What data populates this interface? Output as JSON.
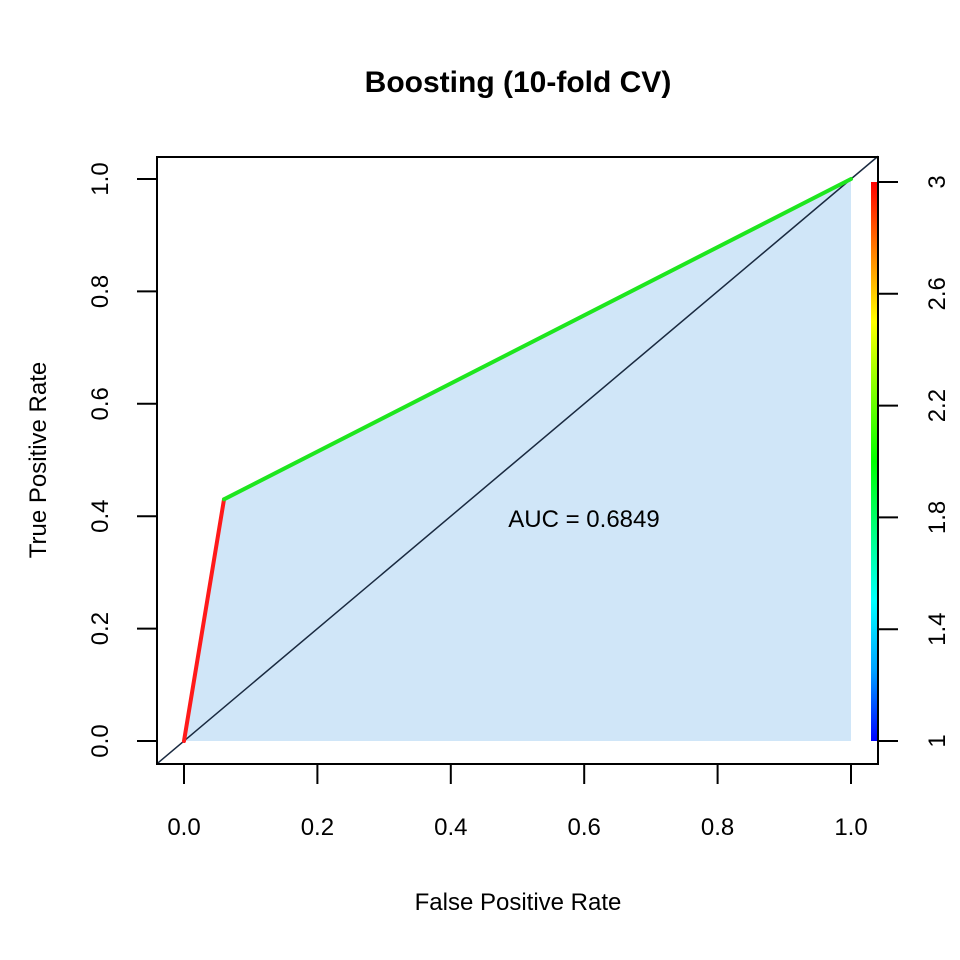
{
  "chart_data": {
    "type": "line",
    "title": "Boosting (10-fold CV)",
    "xlabel": "False Positive Rate",
    "ylabel": "True Positive Rate",
    "xlim": [
      0,
      1
    ],
    "ylim": [
      0,
      1
    ],
    "x_ticks": [
      "0.0",
      "0.2",
      "0.4",
      "0.6",
      "0.8",
      "1.0"
    ],
    "y_ticks": [
      "0.0",
      "0.2",
      "0.4",
      "0.6",
      "0.8",
      "1.0"
    ],
    "grid": false,
    "series": [
      {
        "name": "ROC curve",
        "x": [
          0.0,
          0.06,
          1.0
        ],
        "y": [
          0.0,
          0.43,
          1.0
        ],
        "cutoffs": [
          3,
          2,
          1
        ],
        "segment_colors": [
          "#ff1a1a",
          "#1ee61e"
        ]
      },
      {
        "name": "chance diagonal",
        "x": [
          0,
          1
        ],
        "y": [
          0,
          1
        ],
        "color": "#1a2a40"
      }
    ],
    "area_fill_color": "#d0e6f8",
    "annotation": "AUC = 0.6849",
    "auc": 0.6849,
    "colorbar": {
      "range": [
        1,
        3
      ],
      "tick_labels": [
        "1",
        "1.4",
        "1.8",
        "2.2",
        "2.6",
        "3"
      ],
      "tick_values": [
        1,
        1.4,
        1.8,
        2.2,
        2.6,
        3
      ],
      "colors": [
        "#0000ff",
        "#00a0ff",
        "#00ffff",
        "#00ff80",
        "#00ff00",
        "#80ff00",
        "#ffff00",
        "#ff8000",
        "#ff0000"
      ]
    }
  }
}
